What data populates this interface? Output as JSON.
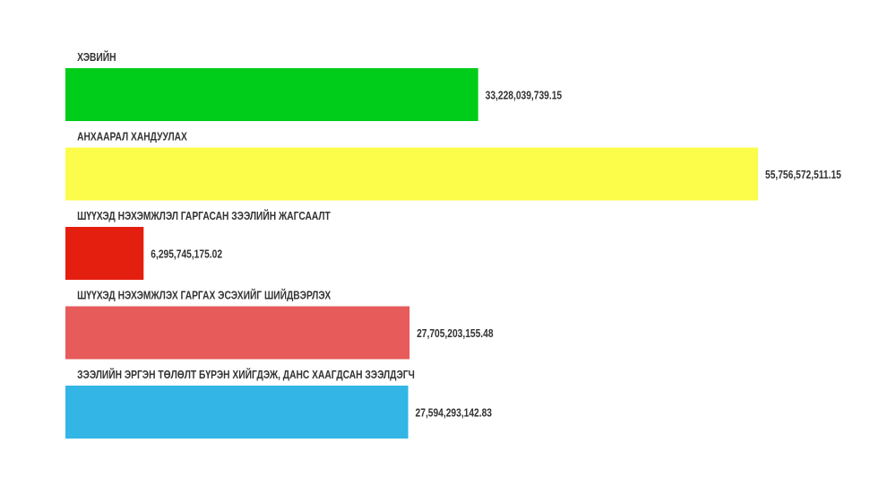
{
  "chart_data": {
    "type": "bar",
    "orientation": "horizontal",
    "categories": [
      "ХЭВИЙН",
      "АНХААРАЛ ХАНДУУЛАХ",
      "ШҮҮХЭД НЭХЭМЖЛЭЛ ГАРГАСАН ЗЭЭЛИЙН ЖАГСААЛТ",
      "ШҮҮХЭД НЭХЭМЖЛЭХ ГАРГАХ ЭСЭХИЙГ ШИЙДВЭРЛЭХ",
      "ЗЭЭЛИЙН ЭРГЭН ТӨЛӨЛТ БҮРЭН ХИЙГДЭЖ, ДАНС ХААГДСАН ЗЭЭЛДЭГЧ"
    ],
    "values": [
      33228039739.15,
      55756572511.15,
      6295745175.02,
      27705203155.48,
      27594293142.83
    ],
    "value_labels": [
      "33,228,039,739.15",
      "55,756,572,511.15",
      "6,295,745,175.02",
      "27,705,203,155.48",
      "27,594,293,142.83"
    ],
    "colors": [
      "#00cc1a",
      "#fcfc4b",
      "#e51f0f",
      "#e75b5b",
      "#33b5e5"
    ],
    "grid": false,
    "legend": "none"
  }
}
